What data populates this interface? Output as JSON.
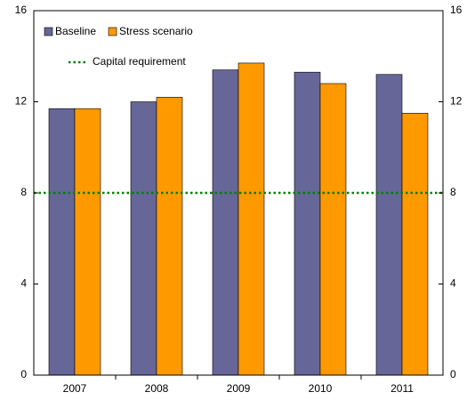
{
  "chart_data": {
    "type": "bar",
    "categories": [
      "2007",
      "2008",
      "2009",
      "2010",
      "2011"
    ],
    "series": [
      {
        "name": "Baseline",
        "color": "#666699",
        "values": [
          11.7,
          12.0,
          13.4,
          13.3,
          13.2
        ]
      },
      {
        "name": "Stress scenario",
        "color": "#ff9900",
        "values": [
          11.7,
          12.2,
          13.7,
          12.8,
          11.5
        ]
      }
    ],
    "reference_line": {
      "name": "Capital requirement",
      "value": 8,
      "color": "#008000"
    },
    "ylim": [
      0,
      16
    ],
    "yticks": [
      0,
      4,
      8,
      12,
      16
    ],
    "y2lim": [
      0,
      16
    ],
    "y2ticks": [
      0,
      4,
      8,
      12,
      16
    ],
    "legend": "top-left"
  }
}
